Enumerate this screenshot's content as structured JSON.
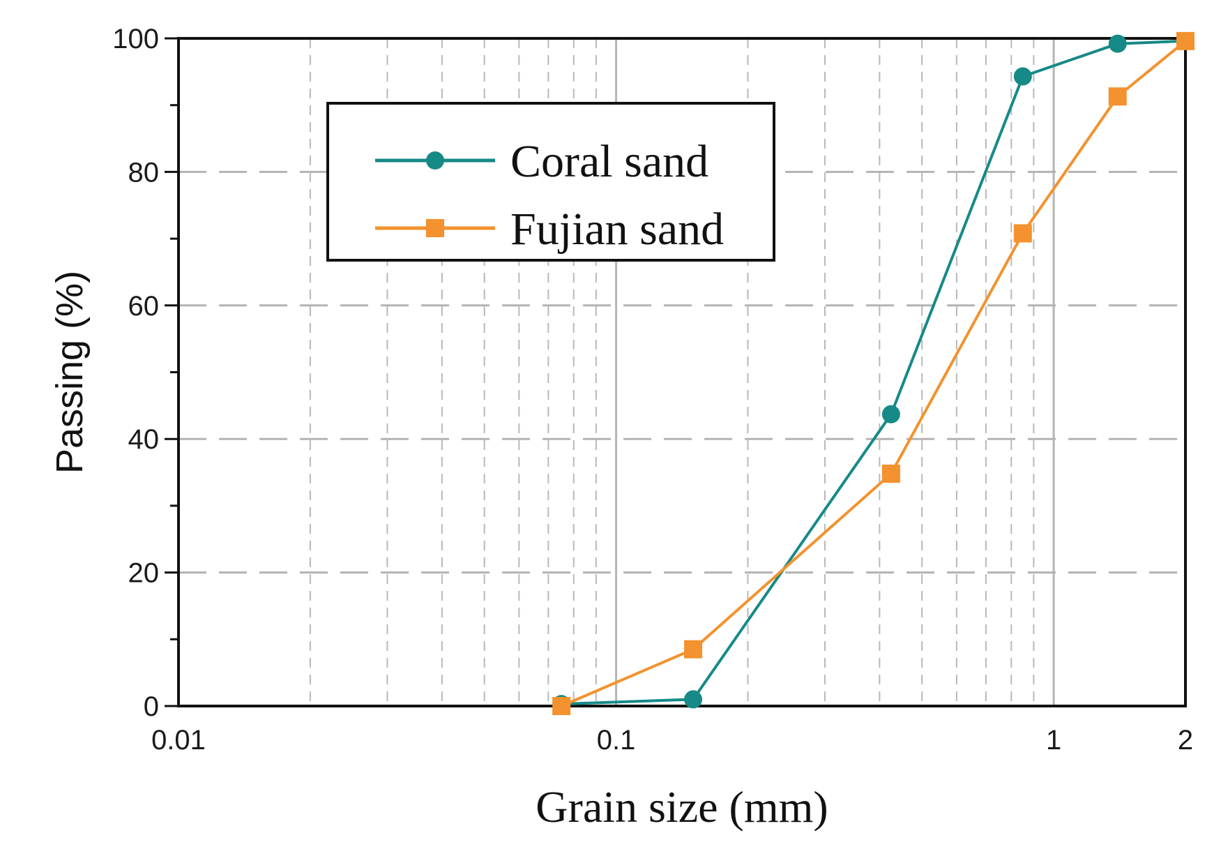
{
  "chart_data": {
    "type": "line",
    "x_scale": "log",
    "title": "",
    "xlabel": "Grain size (mm)",
    "ylabel": "Passing (%)",
    "xlim": [
      0.01,
      2
    ],
    "ylim": [
      0,
      100
    ],
    "x_ticks": [
      {
        "value": 0.01,
        "label": "0.01"
      },
      {
        "value": 0.1,
        "label": "0.1"
      },
      {
        "value": 1,
        "label": "1"
      },
      {
        "value": 2,
        "label": "2"
      }
    ],
    "y_ticks": [
      {
        "value": 0,
        "label": "0"
      },
      {
        "value": 20,
        "label": "20"
      },
      {
        "value": 40,
        "label": "40"
      },
      {
        "value": 60,
        "label": "60"
      },
      {
        "value": 80,
        "label": "80"
      },
      {
        "value": 100,
        "label": "100"
      }
    ],
    "y_minor_ticks": [
      10,
      30,
      50,
      70,
      90
    ],
    "grid": true,
    "legend_position": "top-left-center",
    "series": [
      {
        "name": "Coral sand",
        "color": "#168a87",
        "marker": "circle",
        "x": [
          0.075,
          0.15,
          0.425,
          0.85,
          1.4,
          2.0
        ],
        "y": [
          0.3,
          1.0,
          43.7,
          94.3,
          99.2,
          99.6
        ]
      },
      {
        "name": "Fujian sand",
        "color": "#f3922e",
        "marker": "square",
        "x": [
          0.075,
          0.15,
          0.425,
          0.85,
          1.4,
          2.0
        ],
        "y": [
          0.0,
          8.5,
          34.8,
          70.8,
          91.3,
          99.6
        ]
      }
    ]
  }
}
